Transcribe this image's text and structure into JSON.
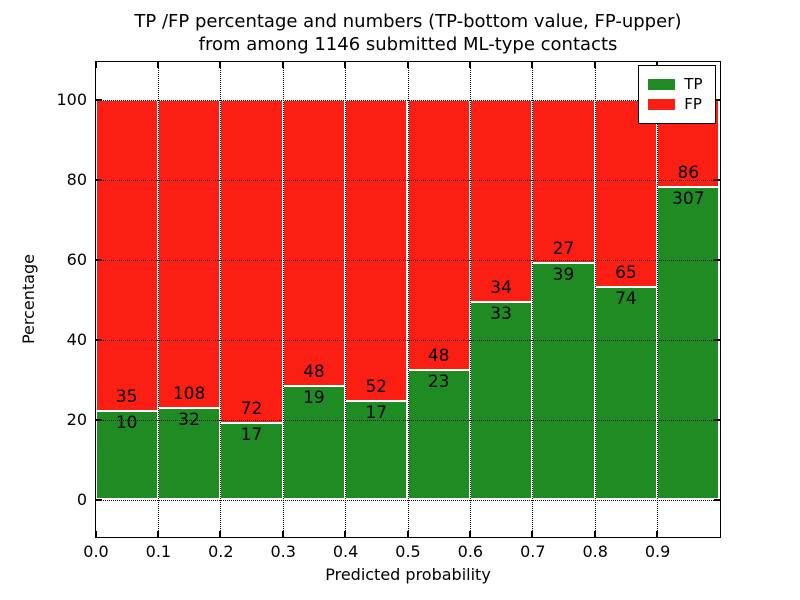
{
  "title": {
    "line1": "TP /FP percentage and numbers (TP-bottom value, FP-upper)",
    "line2": "from among 1146 submitted ML-type contacts"
  },
  "axes": {
    "xlabel": "Predicted probability",
    "ylabel": "Percentage"
  },
  "legend": {
    "position": "upper right",
    "items": [
      {
        "label": "TP",
        "color": "#1e8c23"
      },
      {
        "label": "FP",
        "color": "#fc1d13"
      }
    ]
  },
  "chart_data": {
    "type": "bar",
    "stacked": true,
    "normalized": "each bin stacked to 100%",
    "title": "TP /FP percentage and numbers (TP-bottom value, FP-upper) from among 1146 submitted ML-type contacts",
    "xlabel": "Predicted probability",
    "ylabel": "Percentage",
    "total_contacts": 1146,
    "bin_edges": [
      0.0,
      0.1,
      0.2,
      0.3,
      0.4,
      0.5,
      0.6,
      0.7,
      0.8,
      0.9,
      1.0
    ],
    "categories": [
      "0.0-0.1",
      "0.1-0.2",
      "0.2-0.3",
      "0.3-0.4",
      "0.4-0.5",
      "0.5-0.6",
      "0.6-0.7",
      "0.7-0.8",
      "0.8-0.9",
      "0.9-1.0"
    ],
    "series": [
      {
        "name": "TP",
        "color": "#1e8c23",
        "counts": [
          10,
          32,
          17,
          19,
          17,
          23,
          33,
          39,
          74,
          307
        ]
      },
      {
        "name": "FP",
        "color": "#fc1d13",
        "counts": [
          35,
          108,
          72,
          48,
          52,
          48,
          34,
          27,
          65,
          86
        ]
      }
    ],
    "tp_percent": [
      22.2,
      22.9,
      19.1,
      28.4,
      24.6,
      32.4,
      49.3,
      59.1,
      53.2,
      78.1
    ],
    "yticks": [
      0,
      20,
      40,
      60,
      80,
      100
    ],
    "xticks": [
      "0.0",
      "0.1",
      "0.2",
      "0.3",
      "0.4",
      "0.5",
      "0.6",
      "0.7",
      "0.8",
      "0.9"
    ],
    "ylim": [
      -9.3,
      109.5
    ],
    "xlim": [
      0.0,
      1.0
    ],
    "grid": "dotted black, both axes",
    "legend_position": "upper right"
  }
}
